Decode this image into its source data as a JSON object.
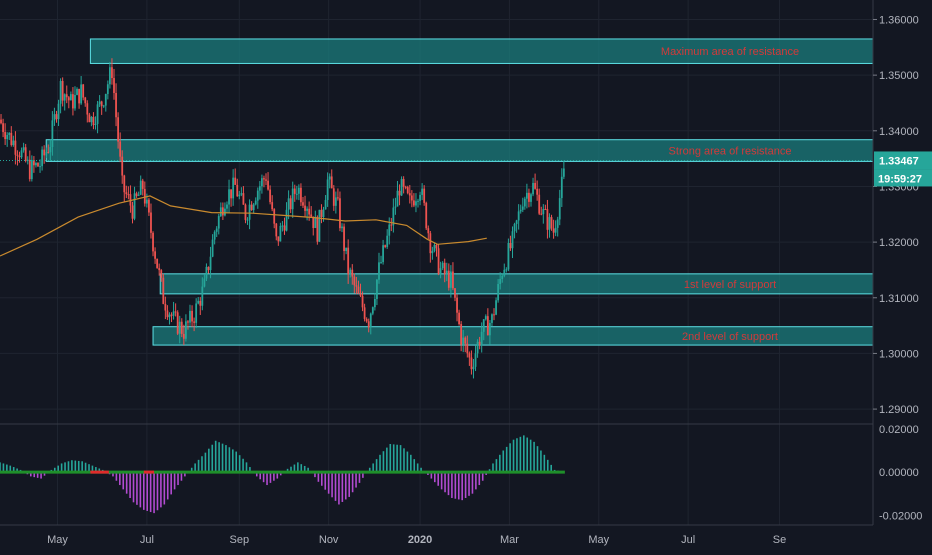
{
  "chart_data": {
    "type": "candlestick",
    "price_panel": {
      "y_range": [
        1.2875,
        1.3635
      ],
      "y_ticks": [
        "1.36000",
        "1.35000",
        "1.34000",
        "1.33000",
        "1.32000",
        "1.31000",
        "1.30000",
        "1.29000"
      ],
      "current_price": "1.33467",
      "countdown": "19:59:27",
      "x_range_weeks": [
        -27.6,
        57.4
      ],
      "x_ticks": [
        {
          "label": "May",
          "week": -22
        },
        {
          "label": "Jul",
          "week": -13.3
        },
        {
          "label": "Sep",
          "week": -4.3
        },
        {
          "label": "Nov",
          "week": 4.4
        },
        {
          "label": "2020",
          "week": 13.3
        },
        {
          "label": "Mar",
          "week": 22
        },
        {
          "label": "May",
          "week": 30.7
        },
        {
          "label": "Jul",
          "week": 39.4
        },
        {
          "label": "Se",
          "week": 48.3
        }
      ],
      "zones": [
        {
          "label": "Maximum area of resistance",
          "week_start": -18.8,
          "top": 1.3565,
          "bottom": 1.3521
        },
        {
          "label": "Strong area of resistance",
          "week_start": -23.1,
          "top": 1.3384,
          "bottom": 1.3345
        },
        {
          "label": "1st level of support",
          "week_start": -12,
          "top": 1.3143,
          "bottom": 1.3107
        },
        {
          "label": "2nd level of support",
          "week_start": -12.7,
          "top": 1.3048,
          "bottom": 1.3015
        }
      ],
      "weekly_close": [
        1.342,
        1.339,
        1.3365,
        1.333,
        1.334,
        1.338,
        1.348,
        1.345,
        1.347,
        1.342,
        1.345,
        1.351,
        1.33,
        1.326,
        1.33,
        1.32,
        1.31,
        1.306,
        1.304,
        1.307,
        1.312,
        1.322,
        1.328,
        1.33,
        1.325,
        1.329,
        1.332,
        1.32,
        1.325,
        1.33,
        1.327,
        1.322,
        1.331,
        1.326,
        1.315,
        1.31,
        1.306,
        1.315,
        1.322,
        1.33,
        1.327,
        1.33,
        1.32,
        1.315,
        1.313,
        1.303,
        1.298,
        1.304,
        1.306,
        1.315,
        1.32,
        1.328,
        1.33,
        1.325,
        1.322,
        1.332
      ],
      "moving_average": [
        [
          -27.6,
          1.3175
        ],
        [
          -24,
          1.3205
        ],
        [
          -20,
          1.3245
        ],
        [
          -16,
          1.327
        ],
        [
          -13,
          1.3283
        ],
        [
          -11,
          1.3265
        ],
        [
          -7,
          1.3253
        ],
        [
          -3,
          1.3252
        ],
        [
          0,
          1.3248
        ],
        [
          3,
          1.3244
        ],
        [
          6,
          1.3238
        ],
        [
          9,
          1.324
        ],
        [
          12,
          1.323
        ],
        [
          14,
          1.3205
        ],
        [
          15,
          1.3196
        ],
        [
          18,
          1.3201
        ],
        [
          19.8,
          1.3207
        ]
      ]
    },
    "indicator_panel": {
      "y_range": [
        -0.0245,
        0.0218
      ],
      "y_ticks": [
        "0.02000",
        "0.00000",
        "-0.02000"
      ],
      "histogram": [
        0.0045,
        0.003,
        0.001,
        -0.002,
        -0.003,
        0.001,
        0.004,
        0.0055,
        0.005,
        0.003,
        0.001,
        -0.002,
        -0.008,
        -0.014,
        -0.0175,
        -0.019,
        -0.015,
        -0.008,
        -0.002,
        0.004,
        0.009,
        0.0145,
        0.0125,
        0.0095,
        0.0045,
        -0.002,
        -0.006,
        -0.003,
        0.0015,
        0.0045,
        0.002,
        -0.0045,
        -0.01,
        -0.015,
        -0.0115,
        -0.005,
        0.002,
        0.008,
        0.013,
        0.0125,
        0.008,
        0.002,
        -0.003,
        -0.008,
        -0.012,
        -0.013,
        -0.01,
        -0.004,
        0.004,
        0.01,
        0.015,
        0.017,
        0.014,
        0.008,
        0.001,
        0.0
      ]
    }
  }
}
